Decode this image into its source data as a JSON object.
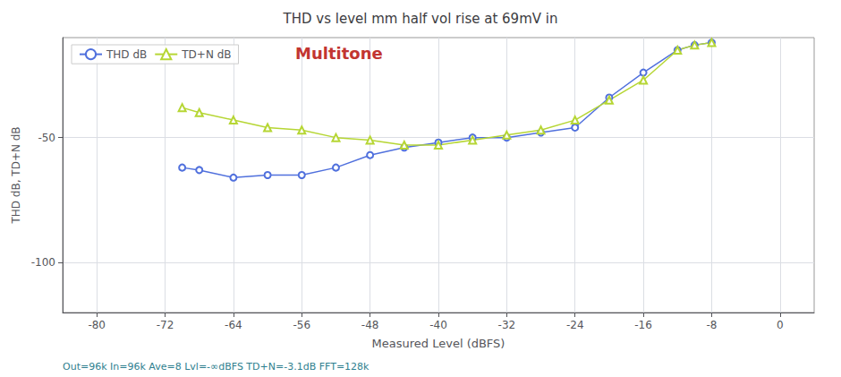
{
  "chart_data": {
    "type": "line",
    "title": "THD vs level mm half vol rise at 69mV in",
    "xlabel": "Measured Level (dBFS)",
    "ylabel": "THD dB, TD+N dB",
    "x": [
      -70,
      -68,
      -64,
      -60,
      -56,
      -52,
      -48,
      -44,
      -40,
      -36,
      -32,
      -28,
      -24,
      -20,
      -16,
      -12,
      -10,
      -8
    ],
    "series": [
      {
        "name": "THD dB",
        "marker": "circle",
        "values": [
          -62,
          -63,
          -66,
          -65,
          -65,
          -62,
          -57,
          -54,
          -52,
          -50,
          -50,
          -48,
          -46,
          -34,
          -24,
          -15,
          -13,
          -12
        ]
      },
      {
        "name": "TD+N dB",
        "marker": "triangle",
        "values": [
          -38,
          -40,
          -43,
          -46,
          -47,
          -50,
          -51,
          -53,
          -53,
          -51,
          -49,
          -47,
          -43,
          -35,
          -27,
          -15,
          -13,
          -12
        ]
      }
    ],
    "xlim": [
      -84,
      4
    ],
    "xticks": [
      -80,
      -72,
      -64,
      -56,
      -48,
      -40,
      -32,
      -24,
      -16,
      -8,
      0
    ],
    "ylim": [
      -120,
      -10
    ],
    "yticks": [
      -100,
      -50
    ],
    "grid": true,
    "legend": "upper left",
    "annotations": [
      "Multitone",
      "Out=96k In=96k Ave=8 Lvl=-∞dBFS TD+N=-3.1dB FFT=128k"
    ]
  }
}
